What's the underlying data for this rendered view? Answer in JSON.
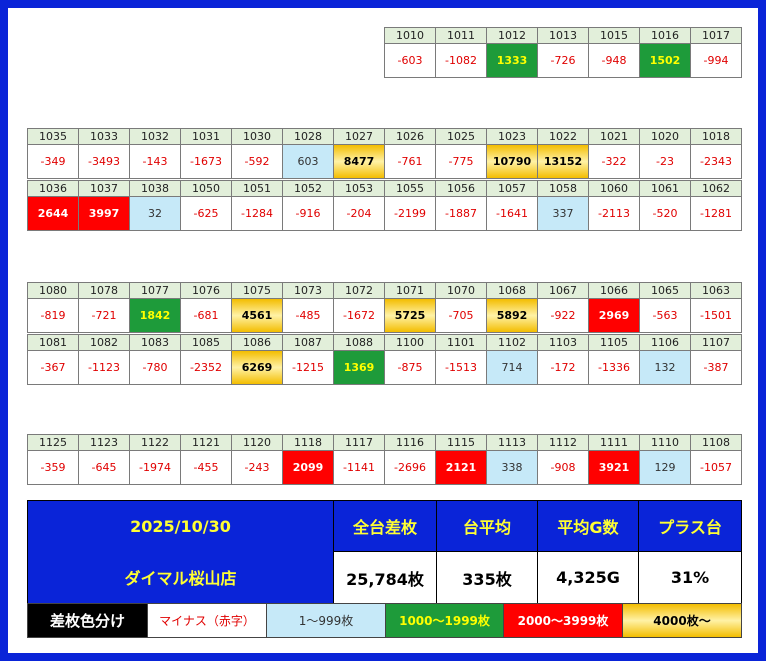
{
  "groups": [
    {
      "rows": [
        {
          "machines": [
            1010,
            1011,
            1012,
            1013,
            1015,
            1016,
            1017
          ],
          "values": [
            -603,
            -1082,
            1333,
            -726,
            -948,
            1502,
            -994
          ],
          "fills": [
            "#ffffff",
            "#ffffff",
            "#1e9b3a",
            "#ffffff",
            "#ffffff",
            "#1e9b3a",
            "#ffffff"
          ]
        }
      ]
    },
    {
      "rows": [
        {
          "machines": [
            1035,
            1033,
            1032,
            1031,
            1030,
            1028,
            1027,
            1026,
            1025,
            1023,
            1022,
            1021,
            1020,
            1018
          ],
          "values": [
            -349,
            -3493,
            -143,
            -1673,
            -592,
            603,
            8477,
            -761,
            -775,
            10790,
            13152,
            -322,
            -23,
            -2343
          ],
          "fills": [
            "#ffffff",
            "#ffffff",
            "#ffffff",
            "#ffffff",
            "#ffffff",
            "#c6e9f8",
            "linear-gradient(180deg,#f3bd00,#fff2a6 50%,#f3bd00)",
            "#ffffff",
            "#ffffff",
            "linear-gradient(180deg,#f3bd00,#fff2a6 50%,#f3bd00)",
            "linear-gradient(180deg,#f3bd00,#fff2a6 50%,#f3bd00)",
            "#ffffff",
            "#ffffff",
            "#ffffff"
          ]
        },
        {
          "machines": [
            1036,
            1037,
            1038,
            1050,
            1051,
            1052,
            1053,
            1055,
            1056,
            1057,
            1058,
            1060,
            1061,
            1062
          ],
          "values": [
            2644,
            3997,
            32,
            -625,
            -1284,
            -916,
            -204,
            -2199,
            -1887,
            -1641,
            337,
            -2113,
            -520,
            -1281
          ],
          "fills": [
            "#ff0000",
            "#ff0000",
            "#c6e9f8",
            "#ffffff",
            "#ffffff",
            "#ffffff",
            "#ffffff",
            "#ffffff",
            "#ffffff",
            "#ffffff",
            "#c6e9f8",
            "#ffffff",
            "#ffffff",
            "#ffffff"
          ]
        }
      ]
    },
    {
      "rows": [
        {
          "machines": [
            1080,
            1078,
            1077,
            1076,
            1075,
            1073,
            1072,
            1071,
            1070,
            1068,
            1067,
            1066,
            1065,
            1063
          ],
          "values": [
            -819,
            -721,
            1842,
            -681,
            4561,
            -485,
            -1672,
            5725,
            -705,
            5892,
            -922,
            2969,
            -563,
            -1501
          ],
          "fills": [
            "#ffffff",
            "#ffffff",
            "#1e9b3a",
            "#ffffff",
            "linear-gradient(180deg,#f3bd00,#fff2a6 50%,#f3bd00)",
            "#ffffff",
            "#ffffff",
            "linear-gradient(180deg,#f3bd00,#fff2a6 50%,#f3bd00)",
            "#ffffff",
            "linear-gradient(180deg,#f3bd00,#fff2a6 50%,#f3bd00)",
            "#ffffff",
            "#ff0000",
            "#ffffff",
            "#ffffff"
          ]
        },
        {
          "machines": [
            1081,
            1082,
            1083,
            1085,
            1086,
            1087,
            1088,
            1100,
            1101,
            1102,
            1103,
            1105,
            1106,
            1107
          ],
          "values": [
            -367,
            -1123,
            -780,
            -2352,
            6269,
            -1215,
            1369,
            -875,
            -1513,
            714,
            -172,
            -1336,
            132,
            -387
          ],
          "fills": [
            "#ffffff",
            "#ffffff",
            "#ffffff",
            "#ffffff",
            "linear-gradient(180deg,#f3bd00,#fff2a6 50%,#f3bd00)",
            "#ffffff",
            "#1e9b3a",
            "#ffffff",
            "#ffffff",
            "#c6e9f8",
            "#ffffff",
            "#ffffff",
            "#c6e9f8",
            "#ffffff"
          ]
        }
      ]
    },
    {
      "rows": [
        {
          "machines": [
            1125,
            1123,
            1122,
            1121,
            1120,
            1118,
            1117,
            1116,
            1115,
            1113,
            1112,
            1111,
            1110,
            1108
          ],
          "values": [
            -359,
            -645,
            -1974,
            -455,
            -243,
            2099,
            -1141,
            -2696,
            2121,
            338,
            -908,
            3921,
            129,
            -1057
          ],
          "fills": [
            "#ffffff",
            "#ffffff",
            "#ffffff",
            "#ffffff",
            "#ffffff",
            "#ff0000",
            "#ffffff",
            "#ffffff",
            "#ff0000",
            "#c6e9f8",
            "#ffffff",
            "#ff0000",
            "#c6e9f8",
            "#ffffff"
          ]
        }
      ]
    }
  ],
  "summary": {
    "date": "2025/10/30",
    "store": "ダイマル桜山店",
    "headers": [
      "全台差枚",
      "台平均",
      "平均G数",
      "プラス台"
    ],
    "values": [
      "25,784枚",
      "335枚",
      "4,325G",
      "31%"
    ]
  },
  "legend": {
    "title": "差枚色分け",
    "items": [
      {
        "label": "マイナス（赤字）",
        "fill": "#ffffff",
        "text_color": "#e00000"
      },
      {
        "label": "1〜999枚",
        "fill": "#c6e9f8",
        "text_color": "#333333"
      },
      {
        "label": "1000〜1999枚",
        "fill": "#1e9b3a",
        "text_color": "#ffff00"
      },
      {
        "label": "2000〜3999枚",
        "fill": "#ff0000",
        "text_color": "#ffffff"
      },
      {
        "label": "4000枚〜",
        "fill": "linear-gradient(180deg,#f3bd00,#fff2a6 50%,#f3bd00)",
        "text_color": "#000000"
      }
    ]
  }
}
